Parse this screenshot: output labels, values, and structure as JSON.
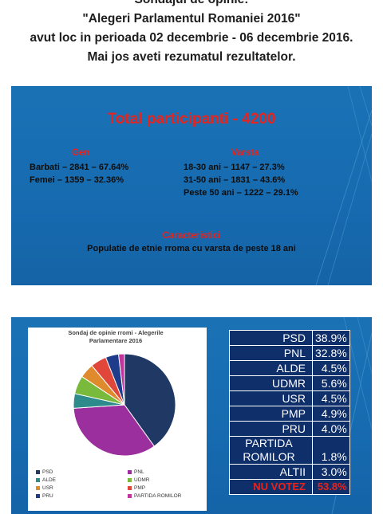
{
  "header": {
    "lines": [
      "Sondajul de opinie:",
      "\"Alegeri Parlamentul Romaniei 2016\"",
      "avut loc in perioada 02 decembrie - 06 decembrie 2016.",
      "Mai jos aveti rezumatul rezultatelor."
    ]
  },
  "slide1": {
    "title": "Total participanti - 4200",
    "gen": {
      "heading": "Gen",
      "lines": [
        "Barbati – 2841 – 67.64%",
        "Femei –  1359 – 32.36%"
      ]
    },
    "varsta": {
      "heading": "Varsta",
      "lines": [
        "18-30 ani – 1147 – 27.3%",
        "31-50 ani – 1831 – 43.6%",
        "Peste 50 ani – 1222 – 29.1%"
      ]
    },
    "caracteristici": {
      "heading": "Caracteristici",
      "text": "Populatie de etnie rroma cu varsta de peste 18 ani"
    }
  },
  "slide2": {
    "table": [
      {
        "party": "PSD",
        "pct": "38.9%"
      },
      {
        "party": "PNL",
        "pct": "32.8%"
      },
      {
        "party": "ALDE",
        "pct": "4.5%"
      },
      {
        "party": "UDMR",
        "pct": "5.6%"
      },
      {
        "party": "USR",
        "pct": "4.5%"
      },
      {
        "party": "PMP",
        "pct": "4.9%"
      },
      {
        "party": "PRU",
        "pct": "4.0%"
      },
      {
        "party": "PARTIDA ROMILOR",
        "pct": "1.8%"
      },
      {
        "party": "ALTII",
        "pct": "3.0%"
      },
      {
        "party": "NU VOTEZ",
        "pct": "53.8%"
      }
    ]
  },
  "chart_data": {
    "type": "pie",
    "title": "Sondaj de opinie rromi - Alegerile Parlamentare 2016",
    "categories": [
      "PSD",
      "PNL",
      "ALDE",
      "UDMR",
      "USR",
      "PMP",
      "PRU",
      "PARTIDA ROMILOR"
    ],
    "values": [
      38.9,
      32.8,
      4.5,
      5.6,
      4.5,
      4.9,
      4.0,
      1.8
    ],
    "colors": [
      "#1f3864",
      "#9b2f9e",
      "#2e8b8b",
      "#79b93c",
      "#e08a2e",
      "#e0473a",
      "#1f3c8a",
      "#c0369b"
    ],
    "legend_position": "bottom",
    "legend": [
      "PSD",
      "PNL",
      "ALDE",
      "UDMR",
      "USR",
      "PMP",
      "PRU",
      "PARTIDA ROMILOR"
    ]
  }
}
